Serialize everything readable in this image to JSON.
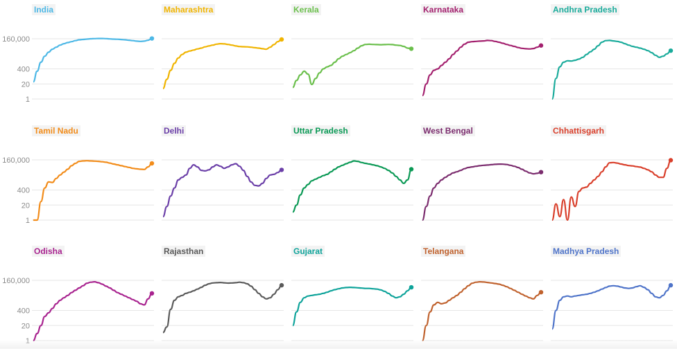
{
  "chart_data": {
    "type": "line",
    "scale": "log",
    "ylim": [
      1,
      160000
    ],
    "y_ticks": [
      "160,000",
      "400",
      "20",
      "1"
    ],
    "y_tick_values": [
      160000,
      400,
      20,
      1
    ],
    "y_ticks_shown_on": "first column only",
    "grid": true,
    "panels": [
      {
        "name": "India",
        "color": "#4db8e6",
        "values": [
          30,
          250,
          1500,
          5000,
          11000,
          20000,
          30000,
          45000,
          60000,
          75000,
          90000,
          110000,
          130000,
          140000,
          150000,
          160000,
          165000,
          170000,
          168000,
          165000,
          155000,
          150000,
          145000,
          138000,
          130000,
          120000,
          110000,
          100000,
          95000,
          100000,
          120000,
          170000
        ]
      },
      {
        "name": "Maharashtra",
        "color": "#f0b400",
        "values": [
          8,
          50,
          300,
          1200,
          3500,
          7000,
          11000,
          14000,
          17000,
          21000,
          25000,
          32000,
          38000,
          45000,
          55000,
          60000,
          58000,
          52000,
          45000,
          38000,
          34000,
          33000,
          32000,
          30000,
          27000,
          25000,
          22000,
          20000,
          30000,
          50000,
          90000,
          140000
        ]
      },
      {
        "name": "Kerala",
        "color": "#6abf4b",
        "values": [
          10,
          40,
          120,
          250,
          140,
          18,
          60,
          180,
          400,
          600,
          800,
          1500,
          3000,
          5000,
          7000,
          10000,
          15000,
          25000,
          40000,
          52000,
          54000,
          52000,
          50000,
          49000,
          50000,
          52000,
          50000,
          45000,
          42000,
          35000,
          25000,
          22000
        ]
      },
      {
        "name": "Karnataka",
        "color": "#a3206e",
        "values": [
          2,
          20,
          120,
          300,
          400,
          800,
          1500,
          3000,
          7000,
          14000,
          30000,
          55000,
          80000,
          90000,
          95000,
          100000,
          105000,
          115000,
          110000,
          95000,
          80000,
          65000,
          52000,
          42000,
          35000,
          28000,
          24000,
          22000,
          21000,
          23000,
          30000,
          42000
        ]
      },
      {
        "name": "Andhra Pradesh",
        "color": "#1aab9b",
        "values": [
          1,
          60,
          600,
          1500,
          2000,
          1900,
          2200,
          2800,
          4000,
          7000,
          12000,
          20000,
          40000,
          80000,
          110000,
          115000,
          105000,
          95000,
          80000,
          60000,
          45000,
          35000,
          30000,
          25000,
          20000,
          15000,
          10000,
          6000,
          4000,
          5000,
          8000,
          15000
        ]
      },
      {
        "name": "Tamil Nadu",
        "color": "#f28c1a",
        "values": [
          1,
          1,
          40,
          600,
          2000,
          1800,
          4000,
          8000,
          14000,
          25000,
          50000,
          80000,
          120000,
          130000,
          135000,
          130000,
          125000,
          120000,
          110000,
          100000,
          85000,
          70000,
          60000,
          50000,
          42000,
          36000,
          30000,
          27000,
          25000,
          24000,
          40000,
          80000
        ]
      },
      {
        "name": "Delhi",
        "color": "#6b3fa8",
        "values": [
          2,
          15,
          120,
          600,
          3000,
          5000,
          8000,
          30000,
          60000,
          40000,
          20000,
          18000,
          22000,
          40000,
          60000,
          45000,
          30000,
          40000,
          60000,
          75000,
          45000,
          20000,
          6000,
          2000,
          1000,
          900,
          1500,
          4000,
          8000,
          9000,
          13000,
          22000
        ]
      },
      {
        "name": "Uttar Pradesh",
        "color": "#0a9955",
        "values": [
          5,
          20,
          150,
          600,
          1200,
          2500,
          3500,
          5000,
          7000,
          9000,
          15000,
          25000,
          40000,
          55000,
          75000,
          100000,
          130000,
          120000,
          95000,
          80000,
          70000,
          60000,
          50000,
          40000,
          30000,
          20000,
          12000,
          6000,
          3000,
          1500,
          3000,
          25000
        ]
      },
      {
        "name": "West Bengal",
        "color": "#7b2c6e",
        "values": [
          1,
          15,
          120,
          600,
          1500,
          3000,
          5000,
          8000,
          12000,
          15000,
          20000,
          28000,
          35000,
          40000,
          45000,
          50000,
          55000,
          58000,
          62000,
          66000,
          69000,
          68000,
          64000,
          55000,
          45000,
          35000,
          25000,
          17000,
          12000,
          10000,
          11000,
          14000
        ]
      },
      {
        "name": "Chhattisgarh",
        "color": "#d93f2b",
        "values": [
          1,
          25,
          2,
          60,
          1,
          100,
          15,
          300,
          600,
          700,
          1500,
          3000,
          6000,
          15000,
          40000,
          90000,
          95000,
          85000,
          70000,
          60000,
          52000,
          48000,
          42000,
          38000,
          30000,
          22000,
          15000,
          8000,
          5000,
          5000,
          30000,
          150000
        ]
      },
      {
        "name": "Odisha",
        "color": "#a8238f",
        "values": [
          1,
          4,
          20,
          120,
          250,
          600,
          1500,
          3000,
          5000,
          8000,
          14000,
          22000,
          35000,
          55000,
          90000,
          110000,
          120000,
          100000,
          75000,
          50000,
          35000,
          22000,
          14000,
          10000,
          7000,
          5000,
          3500,
          2500,
          1500,
          1200,
          4000,
          12000
        ]
      },
      {
        "name": "Rajasthan",
        "color": "#5a5a5a",
        "values": [
          5,
          15,
          500,
          3000,
          6000,
          8000,
          12000,
          15000,
          20000,
          28000,
          40000,
          60000,
          80000,
          95000,
          100000,
          105000,
          98000,
          92000,
          95000,
          100000,
          110000,
          100000,
          80000,
          50000,
          25000,
          12000,
          6000,
          4000,
          5000,
          10000,
          25000,
          60000
        ]
      },
      {
        "name": "Gujarat",
        "color": "#0ea39a",
        "values": [
          20,
          300,
          2000,
          5000,
          7000,
          8000,
          9000,
          10000,
          12000,
          15000,
          20000,
          25000,
          30000,
          35000,
          38000,
          40000,
          38000,
          36000,
          34000,
          32000,
          32000,
          30000,
          28000,
          24000,
          18000,
          12000,
          7000,
          5000,
          6000,
          10000,
          20000,
          40000
        ]
      },
      {
        "name": "Telangana",
        "color": "#c0622e",
        "values": [
          1,
          20,
          300,
          1200,
          2000,
          1500,
          1800,
          3000,
          5000,
          8000,
          15000,
          30000,
          55000,
          90000,
          110000,
          120000,
          115000,
          105000,
          95000,
          85000,
          75000,
          60000,
          45000,
          32000,
          22000,
          15000,
          10000,
          7000,
          5000,
          4000,
          8000,
          15000
        ]
      },
      {
        "name": "Madhya Pradesh",
        "color": "#4f74c9",
        "values": [
          10,
          400,
          3000,
          6000,
          7000,
          6000,
          7000,
          8000,
          9000,
          10000,
          12000,
          15000,
          20000,
          28000,
          38000,
          50000,
          55000,
          50000,
          42000,
          35000,
          32000,
          35000,
          45000,
          55000,
          40000,
          25000,
          12000,
          6000,
          5000,
          8000,
          20000,
          60000
        ]
      }
    ]
  }
}
